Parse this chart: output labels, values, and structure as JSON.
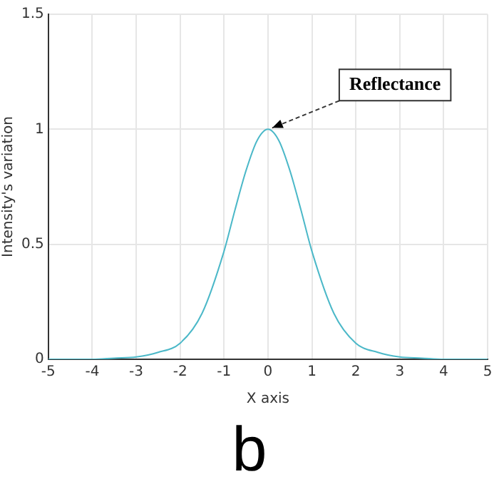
{
  "chart_data": {
    "type": "line",
    "xlabel": "X axis",
    "ylabel": "Intensity's variation",
    "x": [
      -5,
      -4,
      -3.5,
      -3,
      -2.5,
      -2,
      -1.5,
      -1,
      -0.75,
      -0.5,
      -0.25,
      0,
      0.25,
      0.5,
      0.75,
      1,
      1.5,
      2,
      2.5,
      3,
      3.5,
      4,
      5
    ],
    "series": [
      {
        "color": "#4bb8c8",
        "values": [
          0,
          0,
          0.005,
          0.01,
          0.03,
          0.07,
          0.2,
          0.47,
          0.65,
          0.82,
          0.95,
          1,
          0.95,
          0.82,
          0.65,
          0.47,
          0.2,
          0.07,
          0.03,
          0.01,
          0.005,
          0,
          0
        ]
      }
    ],
    "xlim": [
      -5,
      5
    ],
    "xticks": [
      -5,
      -4,
      -3,
      -2,
      -1,
      0,
      1,
      2,
      3,
      4,
      5
    ],
    "ylim": [
      0,
      1.5
    ],
    "yticks": [
      0,
      0.5,
      1,
      1.5
    ],
    "grid": true,
    "legend": false,
    "marker": "none",
    "line_style": "solid",
    "annotations": [
      {
        "text": "Reflectance",
        "x": 0,
        "y": 1
      },
      "b"
    ]
  }
}
